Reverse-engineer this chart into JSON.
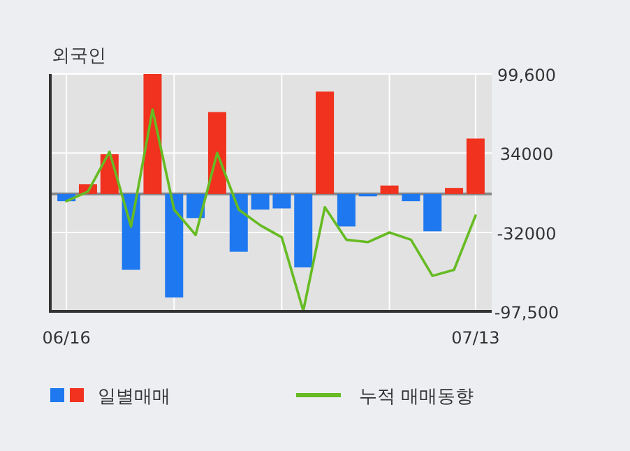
{
  "chart_data": {
    "type": "bar",
    "title": "외국인",
    "categories": [
      "06/16",
      null,
      null,
      null,
      null,
      null,
      null,
      null,
      null,
      null,
      null,
      null,
      null,
      null,
      null,
      null,
      null,
      null,
      null,
      "07/13"
    ],
    "series": [
      {
        "name": "일별매매",
        "colors": [
          "#1e78f0",
          "#f0321e",
          "#f0321e",
          "#1e78f0",
          "#f0321e",
          "#1e78f0",
          "#1e78f0",
          "#f0321e",
          "#1e78f0",
          "#1e78f0",
          "#1e78f0",
          "#1e78f0",
          "#f0321e",
          "#1e78f0",
          "#1e78f0",
          "#f0321e",
          "#1e78f0",
          "#1e78f0",
          "#f0321e",
          "#f0321e"
        ],
        "values": [
          -6000,
          8000,
          33000,
          -63000,
          99600,
          -86000,
          -20000,
          68000,
          -48000,
          -13000,
          -12000,
          -61000,
          85000,
          -27000,
          -2000,
          7000,
          -6000,
          -31000,
          5000,
          46000
        ]
      },
      {
        "name": "누적 매매동향",
        "type": "line",
        "color": "#66bb22",
        "values": [
          -6000,
          2000,
          35000,
          -27000,
          70000,
          -13000,
          -34000,
          34000,
          -13000,
          -26000,
          -36000,
          -97000,
          -11000,
          -38000,
          -40000,
          -32000,
          -38000,
          -68000,
          -63000,
          -18000
        ]
      }
    ],
    "ylim": [
      -97500,
      99600
    ],
    "yticks": [
      {
        "value": 99600,
        "label": "99,600"
      },
      34000,
      -32000,
      {
        "value": -97500,
        "label": "-97,500"
      }
    ],
    "grid": true,
    "legend": "bottom"
  }
}
